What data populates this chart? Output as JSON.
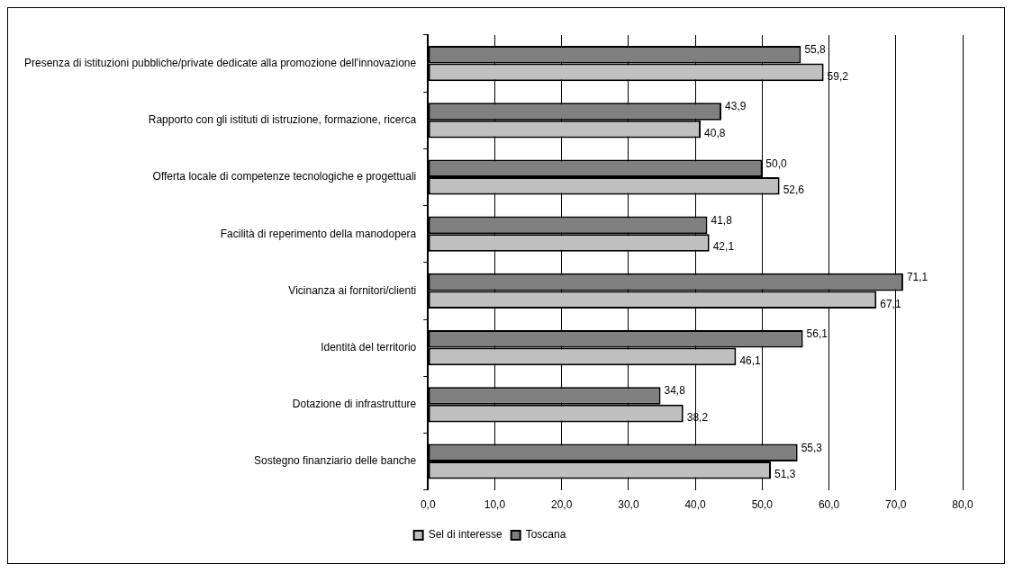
{
  "chart_data": {
    "type": "bar",
    "orientation": "horizontal",
    "categories": [
      "Presenza di istituzioni pubbliche/private dedicate alla promozione dell'innovazione",
      "Rapporto con gli istituti di istruzione, formazione, ricerca",
      "Offerta locale di competenze tecnologiche e progettuali",
      "Facilità di reperimento della manodopera",
      "Vicinanza ai fornitori/clienti",
      "Identità del territorio",
      "Dotazione di infrastrutture",
      "Sostegno finanziario delle banche"
    ],
    "series": [
      {
        "name": "Toscana",
        "color": "#808080",
        "values": [
          55.8,
          43.9,
          50.0,
          41.8,
          71.1,
          56.1,
          34.8,
          55.3
        ],
        "value_labels": [
          "55,8",
          "43,9",
          "50,0",
          "41,8",
          "71,1",
          "56,1",
          "34,8",
          "55,3"
        ]
      },
      {
        "name": "Sel di interesse",
        "color": "#c0c0c0",
        "values": [
          59.2,
          40.8,
          52.6,
          42.1,
          67.1,
          46.1,
          38.2,
          51.3
        ],
        "value_labels": [
          "59,2",
          "40,8",
          "52,6",
          "42,1",
          "67,1",
          "46,1",
          "38,2",
          "51,3"
        ]
      }
    ],
    "xlim": [
      0,
      80
    ],
    "xticks": [
      {
        "value": 0,
        "label": "0,0"
      },
      {
        "value": 10,
        "label": "10,0"
      },
      {
        "value": 20,
        "label": "20,0"
      },
      {
        "value": 30,
        "label": "30,0"
      },
      {
        "value": 40,
        "label": "40,0"
      },
      {
        "value": 50,
        "label": "50,0"
      },
      {
        "value": 60,
        "label": "60,0"
      },
      {
        "value": 70,
        "label": "70,0"
      },
      {
        "value": 80,
        "label": "80,0"
      }
    ],
    "grid": "x",
    "legend": "bottom"
  }
}
